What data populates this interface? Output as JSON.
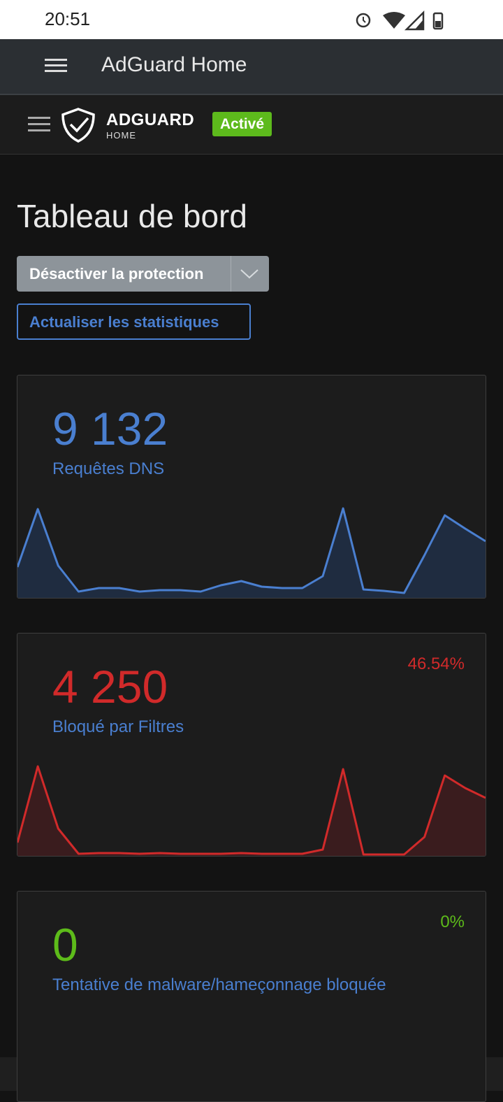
{
  "status_bar": {
    "time": "20:51"
  },
  "app_bar": {
    "title": "AdGuard Home"
  },
  "header": {
    "logo_title": "ADGUARD",
    "logo_subtitle": "HOME",
    "status_badge": "Activé"
  },
  "page": {
    "title": "Tableau de bord",
    "protection_button": "Désactiver la protection",
    "refresh_button": "Actualiser les statistiques"
  },
  "cards": [
    {
      "value": "9 132",
      "label": "Requêtes DNS",
      "color": "#4a7fd0",
      "fill": "#1f2c40",
      "sparkline": [
        420,
        1250,
        440,
        70,
        120,
        120,
        70,
        90,
        90,
        70,
        160,
        220,
        140,
        120,
        120,
        290,
        1260,
        100,
        80,
        50,
        590,
        1160,
        970,
        790
      ]
    },
    {
      "value": "4 250",
      "label": "Bloqué par Filtres",
      "percent": "46.54%",
      "color": "#d12a2a",
      "fill": "#3a1c1e",
      "sparkline": [
        170,
        1260,
        370,
        10,
        20,
        20,
        10,
        20,
        10,
        10,
        10,
        20,
        10,
        10,
        10,
        70,
        1220,
        0,
        0,
        0,
        250,
        1130,
        950,
        810
      ]
    },
    {
      "value": "0",
      "label": "Tentative de malware/hameçonnage bloquée",
      "percent": "0%",
      "color": "#5dbb1a"
    }
  ]
}
